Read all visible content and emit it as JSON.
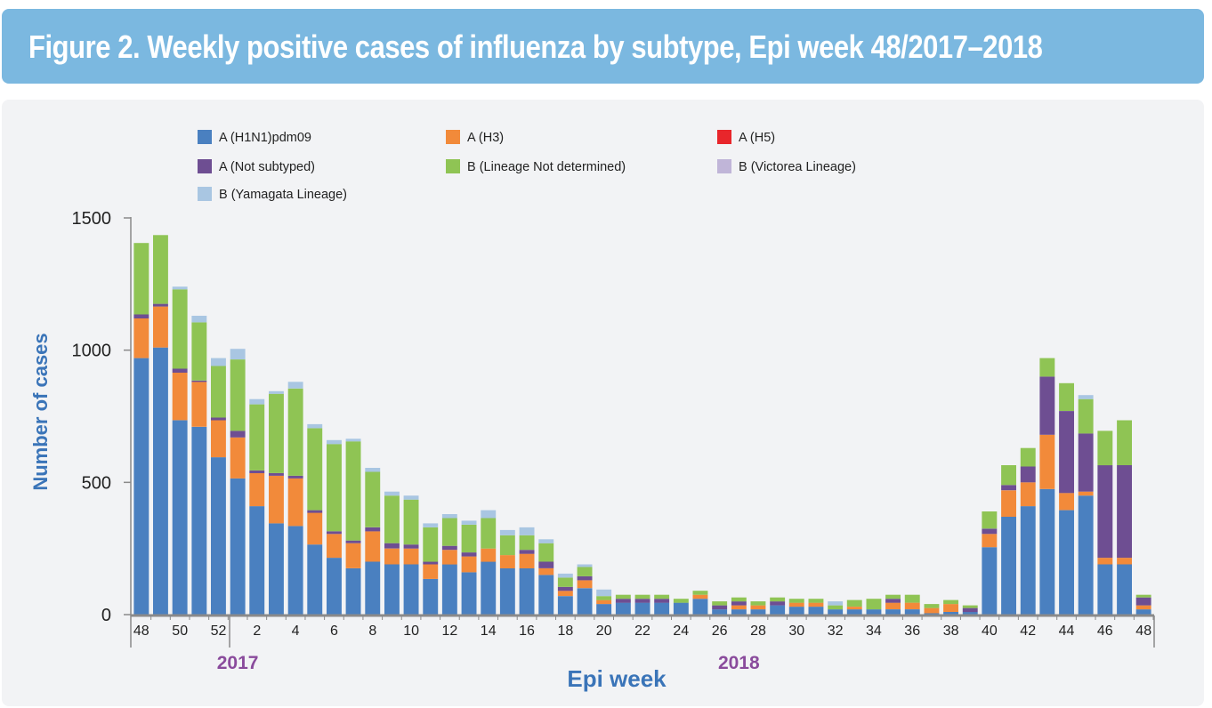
{
  "header": {
    "title": "Figure 2. Weekly positive cases of influenza by subtype, Epi week 48/2017–2018"
  },
  "chart_data": {
    "type": "bar",
    "stacked": true,
    "title": "Figure 2. Weekly positive cases of influenza by subtype, Epi week 48/2017–2018",
    "xlabel": "Epi week",
    "ylabel": "Number of cases",
    "ylim": [
      0,
      1500
    ],
    "yticks": [
      0,
      500,
      1000,
      1500
    ],
    "grid": false,
    "legend_position": "top",
    "year_labels": [
      {
        "label": "2017",
        "near_week_index": 5
      },
      {
        "label": "2018",
        "near_week_index": 31
      }
    ],
    "categories": [
      "48",
      "49",
      "50",
      "51",
      "52",
      "1",
      "2",
      "3",
      "4",
      "5",
      "6",
      "7",
      "8",
      "9",
      "10",
      "11",
      "12",
      "13",
      "14",
      "15",
      "16",
      "17",
      "18",
      "19",
      "20",
      "21",
      "22",
      "23",
      "24",
      "25",
      "26",
      "27",
      "28",
      "29",
      "30",
      "31",
      "32",
      "33",
      "34",
      "35",
      "36",
      "37",
      "38",
      "39",
      "40",
      "41",
      "42",
      "43",
      "44",
      "45",
      "46",
      "47",
      "48"
    ],
    "tick_labels": [
      "48",
      "",
      "50",
      "",
      "52",
      "",
      "2",
      "",
      "4",
      "",
      "6",
      "",
      "8",
      "",
      "10",
      "",
      "12",
      "",
      "14",
      "",
      "16",
      "",
      "18",
      "",
      "20",
      "",
      "22",
      "",
      "24",
      "",
      "26",
      "",
      "28",
      "",
      "30",
      "",
      "32",
      "",
      "34",
      "",
      "36",
      "",
      "38",
      "",
      "40",
      "",
      "42",
      "",
      "44",
      "",
      "46",
      "",
      "48"
    ],
    "series": [
      {
        "name": "A (H1N1)pdm09",
        "color": "#4a80c0",
        "values": [
          970,
          1010,
          735,
          710,
          595,
          515,
          410,
          345,
          335,
          265,
          215,
          175,
          200,
          190,
          190,
          135,
          190,
          160,
          200,
          175,
          175,
          150,
          70,
          100,
          40,
          45,
          45,
          45,
          45,
          60,
          20,
          20,
          20,
          35,
          30,
          30,
          20,
          20,
          20,
          20,
          20,
          5,
          10,
          10,
          255,
          370,
          410,
          475,
          395,
          450,
          190,
          190,
          20
        ]
      },
      {
        "name": "A (H3)",
        "color": "#f28a3a",
        "values": [
          150,
          155,
          180,
          170,
          140,
          155,
          125,
          180,
          180,
          120,
          90,
          95,
          115,
          60,
          60,
          55,
          55,
          60,
          50,
          50,
          55,
          25,
          20,
          30,
          15,
          0,
          0,
          0,
          0,
          15,
          0,
          15,
          15,
          0,
          15,
          15,
          0,
          10,
          0,
          25,
          25,
          20,
          30,
          0,
          50,
          100,
          90,
          205,
          65,
          15,
          25,
          25,
          15
        ]
      },
      {
        "name": "A (H5)",
        "color": "#e8262b",
        "values": [
          0,
          0,
          0,
          0,
          0,
          0,
          0,
          0,
          0,
          0,
          0,
          0,
          0,
          0,
          0,
          0,
          0,
          0,
          0,
          0,
          0,
          0,
          0,
          0,
          0,
          0,
          0,
          0,
          0,
          0,
          0,
          0,
          0,
          0,
          0,
          0,
          0,
          0,
          0,
          0,
          0,
          0,
          0,
          0,
          0,
          0,
          0,
          0,
          0,
          0,
          0,
          0,
          0
        ]
      },
      {
        "name": "A (Not subtyped)",
        "color": "#6e4e92",
        "values": [
          15,
          10,
          15,
          5,
          10,
          25,
          10,
          10,
          10,
          10,
          10,
          10,
          15,
          20,
          15,
          10,
          15,
          15,
          0,
          0,
          15,
          25,
          15,
          15,
          0,
          15,
          15,
          15,
          0,
          0,
          15,
          15,
          0,
          15,
          0,
          0,
          0,
          0,
          0,
          15,
          0,
          0,
          0,
          15,
          20,
          20,
          60,
          220,
          310,
          220,
          350,
          350,
          30
        ]
      },
      {
        "name": "B (Lineage Not determined)",
        "color": "#8fc454",
        "values": [
          270,
          260,
          300,
          220,
          195,
          270,
          250,
          300,
          330,
          310,
          330,
          375,
          210,
          180,
          170,
          130,
          105,
          105,
          115,
          75,
          55,
          70,
          35,
          35,
          15,
          15,
          15,
          15,
          15,
          15,
          15,
          15,
          15,
          15,
          15,
          15,
          15,
          25,
          40,
          15,
          30,
          15,
          15,
          10,
          65,
          75,
          70,
          70,
          105,
          130,
          130,
          170,
          10
        ]
      },
      {
        "name": "B (Victorea Lineage)",
        "color": "#c0b5d8",
        "values": [
          0,
          0,
          0,
          0,
          0,
          0,
          0,
          0,
          0,
          0,
          0,
          0,
          0,
          0,
          0,
          0,
          0,
          0,
          0,
          0,
          0,
          0,
          0,
          0,
          0,
          0,
          0,
          0,
          0,
          0,
          0,
          0,
          0,
          0,
          0,
          0,
          0,
          0,
          0,
          0,
          0,
          0,
          0,
          0,
          0,
          0,
          0,
          0,
          0,
          0,
          0,
          0,
          0
        ]
      },
      {
        "name": "B (Yamagata Lineage)",
        "color": "#a9c6e2",
        "values": [
          0,
          0,
          10,
          25,
          30,
          40,
          20,
          10,
          25,
          15,
          15,
          10,
          15,
          15,
          15,
          15,
          15,
          15,
          30,
          20,
          30,
          15,
          15,
          10,
          25,
          0,
          0,
          0,
          0,
          0,
          0,
          0,
          0,
          0,
          0,
          0,
          15,
          0,
          0,
          0,
          0,
          0,
          0,
          0,
          0,
          0,
          0,
          0,
          0,
          15,
          0,
          0,
          0
        ]
      }
    ]
  }
}
